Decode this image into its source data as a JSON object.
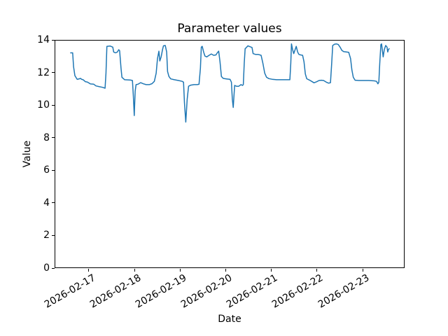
{
  "figure": {
    "title": "Parameter values",
    "xlabel": "Date",
    "ylabel": "Value"
  },
  "chart_data": {
    "type": "line",
    "title": "Parameter values",
    "xlabel": "Date",
    "ylabel": "Value",
    "x_unit": "days since 2026-02-16 00:00",
    "xlim": [
      0.25,
      7.92
    ],
    "ylim": [
      0,
      14
    ],
    "grid": false,
    "legend": "none",
    "line_color": "#1f77b4",
    "line_width": 1.5,
    "y_ticks": [
      0,
      2,
      4,
      6,
      8,
      10,
      12,
      14
    ],
    "x_ticks": [
      {
        "pos": 1,
        "label": "2026-02-17"
      },
      {
        "pos": 2,
        "label": "2026-02-18"
      },
      {
        "pos": 3,
        "label": "2026-02-19"
      },
      {
        "pos": 4,
        "label": "2026-02-20"
      },
      {
        "pos": 5,
        "label": "2026-02-21"
      },
      {
        "pos": 6,
        "label": "2026-02-22"
      },
      {
        "pos": 7,
        "label": "2026-02-23"
      }
    ],
    "series": [
      {
        "name": "parameter",
        "points": [
          [
            0.586,
            13.25
          ],
          [
            0.63,
            13.25
          ],
          [
            0.65,
            12.4
          ],
          [
            0.68,
            11.85
          ],
          [
            0.73,
            11.62
          ],
          [
            0.78,
            11.66
          ],
          [
            0.8,
            11.68
          ],
          [
            0.83,
            11.62
          ],
          [
            0.86,
            11.6
          ],
          [
            0.91,
            11.48
          ],
          [
            0.95,
            11.46
          ],
          [
            1.02,
            11.34
          ],
          [
            1.09,
            11.33
          ],
          [
            1.14,
            11.22
          ],
          [
            1.22,
            11.17
          ],
          [
            1.29,
            11.13
          ],
          [
            1.34,
            11.08
          ],
          [
            1.36,
            12.0
          ],
          [
            1.38,
            13.65
          ],
          [
            1.45,
            13.67
          ],
          [
            1.51,
            13.6
          ],
          [
            1.53,
            13.3
          ],
          [
            1.57,
            13.25
          ],
          [
            1.61,
            13.3
          ],
          [
            1.64,
            13.44
          ],
          [
            1.66,
            13.38
          ],
          [
            1.69,
            12.3
          ],
          [
            1.71,
            11.75
          ],
          [
            1.77,
            11.6
          ],
          [
            1.9,
            11.58
          ],
          [
            1.94,
            11.55
          ],
          [
            1.96,
            10.6
          ],
          [
            1.98,
            9.4
          ],
          [
            2.0,
            10.9
          ],
          [
            2.02,
            11.3
          ],
          [
            2.06,
            11.32
          ],
          [
            2.12,
            11.42
          ],
          [
            2.18,
            11.35
          ],
          [
            2.24,
            11.3
          ],
          [
            2.31,
            11.3
          ],
          [
            2.37,
            11.36
          ],
          [
            2.42,
            11.5
          ],
          [
            2.46,
            12.0
          ],
          [
            2.49,
            12.9
          ],
          [
            2.52,
            13.35
          ],
          [
            2.54,
            12.75
          ],
          [
            2.57,
            13.0
          ],
          [
            2.6,
            13.45
          ],
          [
            2.62,
            13.68
          ],
          [
            2.66,
            13.7
          ],
          [
            2.69,
            13.3
          ],
          [
            2.71,
            12.1
          ],
          [
            2.74,
            11.8
          ],
          [
            2.78,
            11.65
          ],
          [
            2.86,
            11.6
          ],
          [
            2.95,
            11.55
          ],
          [
            3.03,
            11.5
          ],
          [
            3.06,
            11.45
          ],
          [
            3.08,
            10.2
          ],
          [
            3.11,
            9.0
          ],
          [
            3.14,
            10.4
          ],
          [
            3.17,
            11.2
          ],
          [
            3.22,
            11.27
          ],
          [
            3.29,
            11.3
          ],
          [
            3.36,
            11.3
          ],
          [
            3.4,
            11.32
          ],
          [
            3.43,
            12.3
          ],
          [
            3.45,
            13.6
          ],
          [
            3.47,
            13.65
          ],
          [
            3.5,
            13.3
          ],
          [
            3.53,
            13.05
          ],
          [
            3.57,
            13.0
          ],
          [
            3.62,
            13.1
          ],
          [
            3.67,
            13.18
          ],
          [
            3.72,
            13.1
          ],
          [
            3.77,
            13.12
          ],
          [
            3.8,
            13.25
          ],
          [
            3.83,
            13.35
          ],
          [
            3.86,
            12.7
          ],
          [
            3.89,
            11.8
          ],
          [
            3.93,
            11.68
          ],
          [
            4.0,
            11.65
          ],
          [
            4.08,
            11.62
          ],
          [
            4.11,
            11.45
          ],
          [
            4.13,
            10.4
          ],
          [
            4.15,
            9.9
          ],
          [
            4.18,
            11.25
          ],
          [
            4.22,
            11.2
          ],
          [
            4.27,
            11.2
          ],
          [
            4.32,
            11.3
          ],
          [
            4.35,
            11.25
          ],
          [
            4.37,
            11.3
          ],
          [
            4.39,
            12.6
          ],
          [
            4.41,
            13.5
          ],
          [
            4.44,
            13.58
          ],
          [
            4.47,
            13.68
          ],
          [
            4.52,
            13.62
          ],
          [
            4.56,
            13.58
          ],
          [
            4.585,
            13.2
          ],
          [
            4.64,
            13.15
          ],
          [
            4.7,
            13.15
          ],
          [
            4.76,
            13.1
          ],
          [
            4.8,
            12.6
          ],
          [
            4.84,
            12.0
          ],
          [
            4.88,
            11.75
          ],
          [
            4.93,
            11.67
          ],
          [
            5.0,
            11.63
          ],
          [
            5.1,
            11.6
          ],
          [
            5.22,
            11.6
          ],
          [
            5.33,
            11.6
          ],
          [
            5.39,
            11.6
          ],
          [
            5.41,
            12.6
          ],
          [
            5.425,
            13.8
          ],
          [
            5.45,
            13.45
          ],
          [
            5.475,
            13.2
          ],
          [
            5.5,
            13.4
          ],
          [
            5.53,
            13.65
          ],
          [
            5.56,
            13.3
          ],
          [
            5.59,
            13.15
          ],
          [
            5.63,
            13.12
          ],
          [
            5.67,
            13.1
          ],
          [
            5.7,
            12.7
          ],
          [
            5.73,
            11.95
          ],
          [
            5.76,
            11.66
          ],
          [
            5.82,
            11.58
          ],
          [
            5.88,
            11.48
          ],
          [
            5.92,
            11.41
          ],
          [
            5.98,
            11.48
          ],
          [
            6.03,
            11.55
          ],
          [
            6.08,
            11.57
          ],
          [
            6.13,
            11.55
          ],
          [
            6.19,
            11.45
          ],
          [
            6.24,
            11.39
          ],
          [
            6.28,
            11.42
          ],
          [
            6.305,
            12.5
          ],
          [
            6.33,
            13.7
          ],
          [
            6.37,
            13.78
          ],
          [
            6.41,
            13.8
          ],
          [
            6.45,
            13.76
          ],
          [
            6.49,
            13.6
          ],
          [
            6.53,
            13.4
          ],
          [
            6.57,
            13.32
          ],
          [
            6.63,
            13.3
          ],
          [
            6.68,
            13.28
          ],
          [
            6.72,
            12.9
          ],
          [
            6.75,
            12.2
          ],
          [
            6.78,
            11.75
          ],
          [
            6.82,
            11.57
          ],
          [
            6.9,
            11.55
          ],
          [
            7.0,
            11.55
          ],
          [
            7.12,
            11.55
          ],
          [
            7.24,
            11.53
          ],
          [
            7.29,
            11.5
          ],
          [
            7.32,
            11.35
          ],
          [
            7.34,
            11.45
          ],
          [
            7.36,
            12.6
          ],
          [
            7.385,
            13.75
          ],
          [
            7.4,
            13.8
          ],
          [
            7.42,
            13.35
          ],
          [
            7.435,
            13.0
          ],
          [
            7.46,
            13.45
          ],
          [
            7.49,
            13.7
          ],
          [
            7.52,
            13.6
          ],
          [
            7.535,
            13.3
          ],
          [
            7.55,
            13.45
          ],
          [
            7.565,
            13.5
          ]
        ]
      }
    ]
  }
}
